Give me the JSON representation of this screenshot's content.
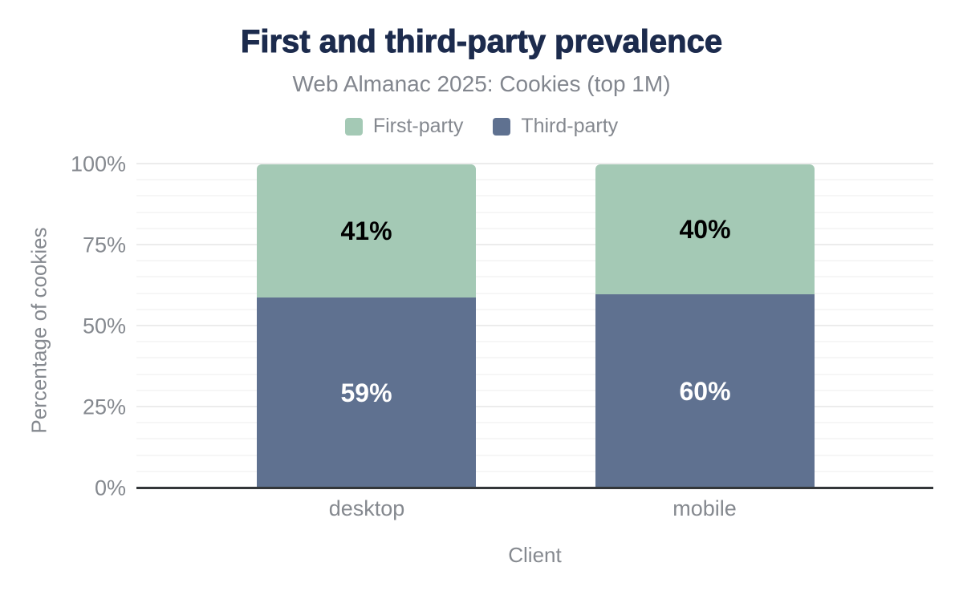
{
  "title": {
    "text": "First and third-party prevalence",
    "color": "#1c2b4d"
  },
  "subtitle": {
    "text": "Web Almanac 2025: Cookies (top 1M)",
    "color": "#82868e"
  },
  "legend": {
    "position": "top",
    "items": [
      {
        "label": "First-party",
        "color": "#a4c9b5"
      },
      {
        "label": "Third-party",
        "color": "#5f7190"
      }
    ]
  },
  "chart_data": {
    "type": "bar",
    "stacked": true,
    "title": "First and third-party prevalence",
    "subtitle": "Web Almanac 2025: Cookies (top 1M)",
    "categories": [
      "desktop",
      "mobile"
    ],
    "series": [
      {
        "name": "First-party",
        "color": "#a4c9b5",
        "values": [
          41,
          40
        ],
        "data_labels": [
          "41%",
          "40%"
        ],
        "label_color": "#000000"
      },
      {
        "name": "Third-party",
        "color": "#5f7190",
        "values": [
          59,
          60
        ],
        "data_labels": [
          "59%",
          "60%"
        ],
        "label_color": "#ffffff"
      }
    ],
    "xlabel": "Client",
    "ylabel": "Percentage of cookies",
    "ylim": [
      0,
      100
    ],
    "yticks": [
      {
        "label": "0%",
        "value": 0
      },
      {
        "label": "25%",
        "value": 25
      },
      {
        "label": "50%",
        "value": 50
      },
      {
        "label": "75%",
        "value": 75
      },
      {
        "label": "100%",
        "value": 100
      }
    ],
    "grid": {
      "orientation": "horizontal",
      "minor_step": 5,
      "major_step": 25,
      "minor_color": "#f6f6f6",
      "major_color": "#ececec"
    },
    "axis_line_color": "#333639",
    "tick_label_color": "#85898f",
    "legend_position": "top",
    "value_suffix": "%"
  }
}
